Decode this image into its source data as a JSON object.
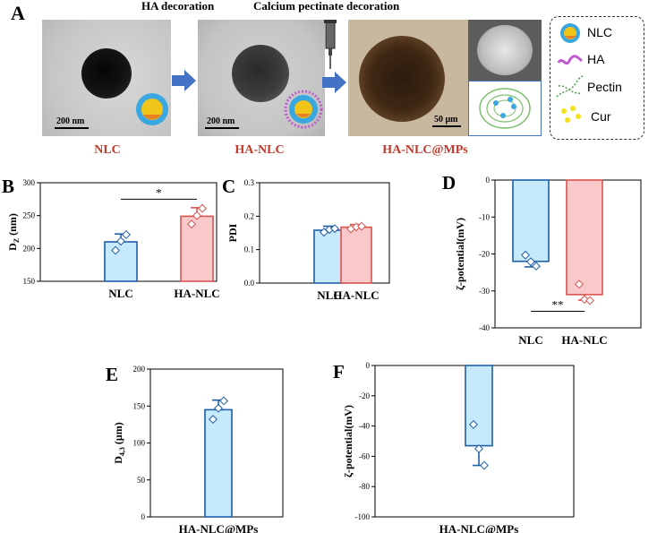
{
  "panel_a": {
    "letter": "A",
    "step1_title": "HA decoration",
    "step2_title": "Calcium pectinate decoration",
    "images": [
      {
        "label": "NLC",
        "scale": "200 nm"
      },
      {
        "label": "HA-NLC",
        "scale": "200 nm"
      },
      {
        "label": "HA-NLC@MPs",
        "scale": "50 μm"
      }
    ],
    "legend": [
      "NLC",
      "HA",
      "Pectin",
      "Cur"
    ],
    "colors": {
      "label_red": "#c0392b",
      "arrow_blue": "#4472c4"
    }
  },
  "chart_data": [
    {
      "letter": "B",
      "type": "bar",
      "categories": [
        "NLC",
        "HA-NLC"
      ],
      "values": [
        210,
        249
      ],
      "errors": [
        12,
        13
      ],
      "points": [
        [
          197,
          211,
          221
        ],
        [
          237,
          250,
          261
        ]
      ],
      "ylabel": "D",
      "ylabel_sub": "Z",
      "ylabel_unit": " (nm)",
      "ylim": [
        150,
        300
      ],
      "yticks": [
        150,
        200,
        250,
        300
      ],
      "significance": {
        "text": "*",
        "from": 0,
        "to": 1,
        "y": 275
      },
      "colors": [
        "#c6e9fb",
        "#f9c8c8"
      ],
      "edge_colors": [
        "#1f5fa8",
        "#d9534f"
      ]
    },
    {
      "letter": "C",
      "type": "bar",
      "categories": [
        "NLC",
        "HA-NLC"
      ],
      "values": [
        0.158,
        0.167
      ],
      "errors": [
        0.012,
        0.008
      ],
      "points": [
        [
          0.152,
          0.16,
          0.163
        ],
        [
          0.162,
          0.168,
          0.17
        ]
      ],
      "ylabel": "PDI",
      "ylabel_sub": "",
      "ylabel_unit": "",
      "ylim": [
        0.0,
        0.3
      ],
      "yticks": [
        0.0,
        0.1,
        0.2,
        0.3
      ],
      "ytick_labels": [
        "0.0",
        "0.1",
        "0.2",
        "0.3"
      ],
      "colors": [
        "#c6e9fb",
        "#f9c8c8"
      ],
      "edge_colors": [
        "#1f5fa8",
        "#d9534f"
      ]
    },
    {
      "letter": "D",
      "type": "bar",
      "categories": [
        "NLC",
        "HA-NLC"
      ],
      "values": [
        -22,
        -31
      ],
      "errors": [
        1.5,
        1.5
      ],
      "points": [
        [
          -20.3,
          -22.1,
          -23.3
        ],
        [
          -28.2,
          -32.3,
          -32.6
        ]
      ],
      "ylabel": "ζ-potential(mV)",
      "ylabel_sub": "",
      "ylabel_unit": "",
      "ylim": [
        -40,
        0
      ],
      "yticks": [
        -40,
        -30,
        -20,
        -10,
        0
      ],
      "significance": {
        "text": "**",
        "from": 0,
        "to": 1,
        "y": -35.5
      },
      "colors": [
        "#c6e9fb",
        "#f9c8c8"
      ],
      "edge_colors": [
        "#1f5fa8",
        "#d9534f"
      ]
    },
    {
      "letter": "E",
      "type": "bar",
      "categories": [
        "HA-NLC@MPs"
      ],
      "values": [
        145
      ],
      "errors": [
        13
      ],
      "points": [
        [
          132,
          147,
          157
        ]
      ],
      "ylabel": "D",
      "ylabel_sub": "4,3",
      "ylabel_unit": " (μm)",
      "ylim": [
        0,
        200
      ],
      "yticks": [
        0,
        50,
        100,
        150,
        200
      ],
      "colors": [
        "#c6e9fb"
      ],
      "edge_colors": [
        "#1f5fa8"
      ]
    },
    {
      "letter": "F",
      "type": "bar",
      "categories": [
        "HA-NLC@MPs"
      ],
      "values": [
        -53
      ],
      "errors": [
        13
      ],
      "points": [
        [
          -39,
          -55,
          -66
        ]
      ],
      "ylabel": "ζ-potential(mV)",
      "ylabel_sub": "",
      "ylabel_unit": "",
      "ylim": [
        -100,
        0
      ],
      "yticks": [
        -100,
        -80,
        -60,
        -40,
        -20,
        0
      ],
      "colors": [
        "#c6e9fb"
      ],
      "edge_colors": [
        "#1f5fa8"
      ]
    }
  ]
}
